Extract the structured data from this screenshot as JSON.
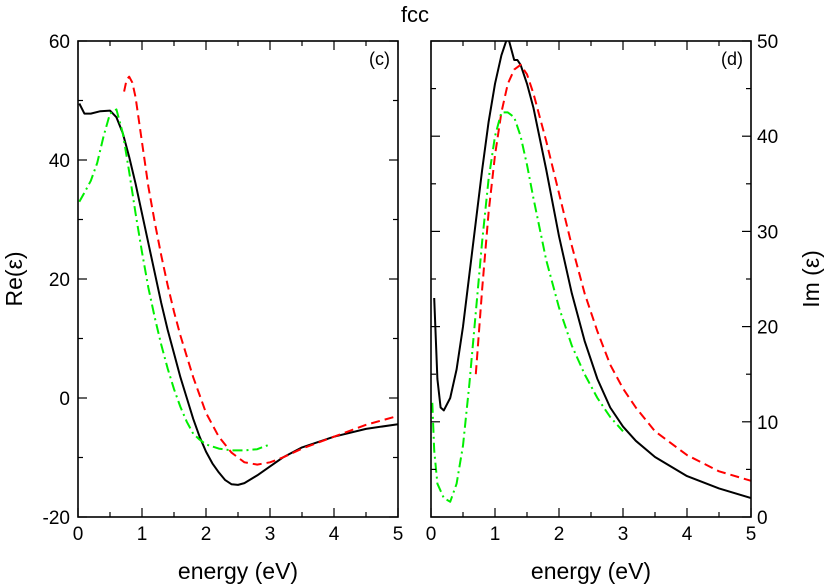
{
  "title": "fcc",
  "chart_data": [
    {
      "type": "line",
      "panel_label": "(c)",
      "xlabel": "energy (eV)",
      "ylabel": "Re(ε)",
      "xlim": [
        0,
        5
      ],
      "ylim": [
        -20,
        60
      ],
      "xticks": [
        0,
        1,
        2,
        3,
        4,
        5
      ],
      "yticks": [
        -20,
        0,
        20,
        40,
        60
      ],
      "y_axis_side": "left",
      "series": [
        {
          "name": "black-solid",
          "color": "#000000",
          "dash": "solid",
          "x": [
            0.02,
            0.1,
            0.2,
            0.35,
            0.5,
            0.6,
            0.7,
            0.8,
            0.9,
            1.0,
            1.1,
            1.2,
            1.3,
            1.4,
            1.5,
            1.6,
            1.7,
            1.8,
            1.9,
            2.0,
            2.1,
            2.2,
            2.3,
            2.4,
            2.5,
            2.6,
            2.8,
            3.0,
            3.2,
            3.5,
            4.0,
            4.5,
            5.0
          ],
          "y": [
            49.5,
            47.8,
            47.8,
            48.2,
            48.3,
            47.2,
            44.5,
            40.5,
            36.0,
            31.0,
            26.0,
            21.0,
            16.0,
            11.5,
            7.5,
            3.5,
            0.0,
            -3.5,
            -6.5,
            -9.0,
            -11.0,
            -12.5,
            -13.8,
            -14.5,
            -14.6,
            -14.3,
            -13.0,
            -11.5,
            -10.0,
            -8.3,
            -6.5,
            -5.2,
            -4.4
          ]
        },
        {
          "name": "red-dashed",
          "color": "#ff0000",
          "dash": "dashed",
          "x": [
            0.72,
            0.76,
            0.8,
            0.85,
            0.9,
            1.0,
            1.1,
            1.2,
            1.3,
            1.4,
            1.5,
            1.6,
            1.7,
            1.8,
            1.9,
            2.0,
            2.2,
            2.4,
            2.6,
            2.8,
            3.0,
            3.2,
            3.5,
            4.0,
            4.5,
            5.0
          ],
          "y": [
            51.5,
            53.5,
            54.0,
            53.0,
            50.5,
            43.0,
            35.5,
            29.5,
            24.0,
            19.0,
            14.5,
            10.5,
            7.0,
            3.5,
            0.5,
            -2.5,
            -6.5,
            -9.2,
            -10.8,
            -11.2,
            -10.8,
            -10.0,
            -8.5,
            -6.5,
            -4.5,
            -3.0
          ]
        },
        {
          "name": "green-dashdot",
          "color": "#00ee00",
          "dash": "dashdot",
          "x": [
            0.02,
            0.1,
            0.2,
            0.3,
            0.4,
            0.5,
            0.6,
            0.7,
            0.8,
            0.9,
            1.0,
            1.1,
            1.2,
            1.3,
            1.4,
            1.5,
            1.6,
            1.7,
            1.8,
            1.9,
            2.0,
            2.2,
            2.4,
            2.6,
            2.8,
            3.0
          ],
          "y": [
            33.0,
            34.5,
            36.5,
            39.5,
            44.0,
            47.8,
            48.5,
            44.5,
            38.0,
            31.0,
            24.5,
            18.5,
            13.5,
            9.0,
            5.0,
            1.5,
            -1.5,
            -4.0,
            -6.0,
            -7.0,
            -7.8,
            -8.5,
            -8.8,
            -8.8,
            -8.6,
            -7.8
          ]
        }
      ]
    },
    {
      "type": "line",
      "panel_label": "(d)",
      "xlabel": "energy (eV)",
      "ylabel": "Im (ε)",
      "xlim": [
        0,
        5
      ],
      "ylim": [
        0,
        50
      ],
      "xticks": [
        0,
        1,
        2,
        3,
        4,
        5
      ],
      "yticks": [
        0,
        10,
        20,
        30,
        40,
        50
      ],
      "y_axis_side": "right",
      "series": [
        {
          "name": "black-solid",
          "color": "#000000",
          "dash": "solid",
          "x": [
            0.05,
            0.1,
            0.15,
            0.2,
            0.3,
            0.4,
            0.5,
            0.6,
            0.7,
            0.8,
            0.9,
            1.0,
            1.1,
            1.2,
            1.3,
            1.35,
            1.4,
            1.5,
            1.6,
            1.8,
            2.0,
            2.2,
            2.4,
            2.6,
            2.8,
            3.0,
            3.2,
            3.5,
            4.0,
            4.5,
            5.0
          ],
          "y": [
            23.0,
            14.5,
            11.5,
            11.2,
            12.5,
            15.5,
            20.0,
            25.5,
            31.0,
            36.5,
            41.5,
            45.5,
            48.5,
            50.5,
            48.0,
            48.0,
            47.5,
            45.5,
            43.0,
            36.5,
            29.5,
            23.5,
            18.5,
            14.5,
            11.5,
            9.5,
            8.0,
            6.3,
            4.3,
            3.0,
            2.0
          ]
        },
        {
          "name": "red-dashed",
          "color": "#ff0000",
          "dash": "dashed",
          "x": [
            0.7,
            0.8,
            0.9,
            1.0,
            1.1,
            1.2,
            1.3,
            1.4,
            1.5,
            1.6,
            1.7,
            1.8,
            2.0,
            2.2,
            2.4,
            2.6,
            2.8,
            3.0,
            3.2,
            3.5,
            4.0,
            4.5,
            5.0
          ],
          "y": [
            15.0,
            24.0,
            32.0,
            38.0,
            42.5,
            45.5,
            47.0,
            47.5,
            46.5,
            44.5,
            42.0,
            39.5,
            34.0,
            28.5,
            23.5,
            19.5,
            16.0,
            13.5,
            11.5,
            9.0,
            6.5,
            4.8,
            3.8
          ]
        },
        {
          "name": "green-dashdot",
          "color": "#00ee00",
          "dash": "dashdot",
          "x": [
            0.02,
            0.05,
            0.1,
            0.2,
            0.3,
            0.4,
            0.5,
            0.6,
            0.7,
            0.8,
            0.9,
            1.0,
            1.1,
            1.2,
            1.3,
            1.4,
            1.5,
            1.6,
            1.8,
            2.0,
            2.2,
            2.4,
            2.6,
            2.8,
            3.0
          ],
          "y": [
            12.0,
            7.0,
            3.5,
            2.0,
            1.6,
            3.5,
            7.5,
            14.0,
            21.5,
            29.0,
            35.5,
            40.0,
            42.5,
            42.5,
            42.0,
            40.0,
            37.0,
            33.5,
            27.0,
            22.0,
            18.0,
            15.0,
            12.5,
            10.5,
            9.0
          ]
        }
      ]
    }
  ]
}
